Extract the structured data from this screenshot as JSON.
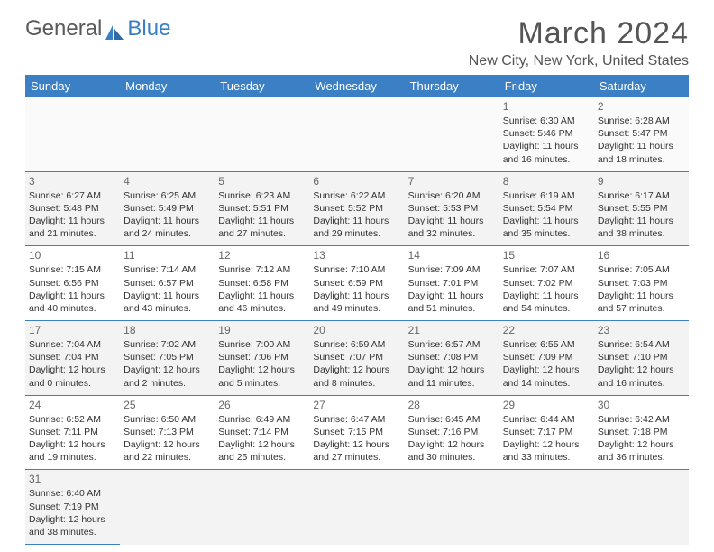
{
  "logo": {
    "part1": "General",
    "part2": "Blue"
  },
  "title": "March 2024",
  "location": "New City, New York, United States",
  "colors": {
    "header_bg": "#3b7fc4",
    "header_text": "#ffffff",
    "border": "#3b7fc4",
    "alt_row_bg": "#f3f3f3",
    "text": "#333333",
    "title_color": "#555555"
  },
  "typography": {
    "month_fontsize": 34,
    "location_fontsize": 16,
    "dayheader_fontsize": 13,
    "cell_fontsize": 10.5
  },
  "table": {
    "type": "calendar",
    "columns": [
      "Sunday",
      "Monday",
      "Tuesday",
      "Wednesday",
      "Thursday",
      "Friday",
      "Saturday"
    ],
    "weeks": [
      [
        null,
        null,
        null,
        null,
        null,
        {
          "n": "1",
          "sr": "Sunrise: 6:30 AM",
          "ss": "Sunset: 5:46 PM",
          "dl": "Daylight: 11 hours and 16 minutes."
        },
        {
          "n": "2",
          "sr": "Sunrise: 6:28 AM",
          "ss": "Sunset: 5:47 PM",
          "dl": "Daylight: 11 hours and 18 minutes."
        }
      ],
      [
        {
          "n": "3",
          "sr": "Sunrise: 6:27 AM",
          "ss": "Sunset: 5:48 PM",
          "dl": "Daylight: 11 hours and 21 minutes."
        },
        {
          "n": "4",
          "sr": "Sunrise: 6:25 AM",
          "ss": "Sunset: 5:49 PM",
          "dl": "Daylight: 11 hours and 24 minutes."
        },
        {
          "n": "5",
          "sr": "Sunrise: 6:23 AM",
          "ss": "Sunset: 5:51 PM",
          "dl": "Daylight: 11 hours and 27 minutes."
        },
        {
          "n": "6",
          "sr": "Sunrise: 6:22 AM",
          "ss": "Sunset: 5:52 PM",
          "dl": "Daylight: 11 hours and 29 minutes."
        },
        {
          "n": "7",
          "sr": "Sunrise: 6:20 AM",
          "ss": "Sunset: 5:53 PM",
          "dl": "Daylight: 11 hours and 32 minutes."
        },
        {
          "n": "8",
          "sr": "Sunrise: 6:19 AM",
          "ss": "Sunset: 5:54 PM",
          "dl": "Daylight: 11 hours and 35 minutes."
        },
        {
          "n": "9",
          "sr": "Sunrise: 6:17 AM",
          "ss": "Sunset: 5:55 PM",
          "dl": "Daylight: 11 hours and 38 minutes."
        }
      ],
      [
        {
          "n": "10",
          "sr": "Sunrise: 7:15 AM",
          "ss": "Sunset: 6:56 PM",
          "dl": "Daylight: 11 hours and 40 minutes."
        },
        {
          "n": "11",
          "sr": "Sunrise: 7:14 AM",
          "ss": "Sunset: 6:57 PM",
          "dl": "Daylight: 11 hours and 43 minutes."
        },
        {
          "n": "12",
          "sr": "Sunrise: 7:12 AM",
          "ss": "Sunset: 6:58 PM",
          "dl": "Daylight: 11 hours and 46 minutes."
        },
        {
          "n": "13",
          "sr": "Sunrise: 7:10 AM",
          "ss": "Sunset: 6:59 PM",
          "dl": "Daylight: 11 hours and 49 minutes."
        },
        {
          "n": "14",
          "sr": "Sunrise: 7:09 AM",
          "ss": "Sunset: 7:01 PM",
          "dl": "Daylight: 11 hours and 51 minutes."
        },
        {
          "n": "15",
          "sr": "Sunrise: 7:07 AM",
          "ss": "Sunset: 7:02 PM",
          "dl": "Daylight: 11 hours and 54 minutes."
        },
        {
          "n": "16",
          "sr": "Sunrise: 7:05 AM",
          "ss": "Sunset: 7:03 PM",
          "dl": "Daylight: 11 hours and 57 minutes."
        }
      ],
      [
        {
          "n": "17",
          "sr": "Sunrise: 7:04 AM",
          "ss": "Sunset: 7:04 PM",
          "dl": "Daylight: 12 hours and 0 minutes."
        },
        {
          "n": "18",
          "sr": "Sunrise: 7:02 AM",
          "ss": "Sunset: 7:05 PM",
          "dl": "Daylight: 12 hours and 2 minutes."
        },
        {
          "n": "19",
          "sr": "Sunrise: 7:00 AM",
          "ss": "Sunset: 7:06 PM",
          "dl": "Daylight: 12 hours and 5 minutes."
        },
        {
          "n": "20",
          "sr": "Sunrise: 6:59 AM",
          "ss": "Sunset: 7:07 PM",
          "dl": "Daylight: 12 hours and 8 minutes."
        },
        {
          "n": "21",
          "sr": "Sunrise: 6:57 AM",
          "ss": "Sunset: 7:08 PM",
          "dl": "Daylight: 12 hours and 11 minutes."
        },
        {
          "n": "22",
          "sr": "Sunrise: 6:55 AM",
          "ss": "Sunset: 7:09 PM",
          "dl": "Daylight: 12 hours and 14 minutes."
        },
        {
          "n": "23",
          "sr": "Sunrise: 6:54 AM",
          "ss": "Sunset: 7:10 PM",
          "dl": "Daylight: 12 hours and 16 minutes."
        }
      ],
      [
        {
          "n": "24",
          "sr": "Sunrise: 6:52 AM",
          "ss": "Sunset: 7:11 PM",
          "dl": "Daylight: 12 hours and 19 minutes."
        },
        {
          "n": "25",
          "sr": "Sunrise: 6:50 AM",
          "ss": "Sunset: 7:13 PM",
          "dl": "Daylight: 12 hours and 22 minutes."
        },
        {
          "n": "26",
          "sr": "Sunrise: 6:49 AM",
          "ss": "Sunset: 7:14 PM",
          "dl": "Daylight: 12 hours and 25 minutes."
        },
        {
          "n": "27",
          "sr": "Sunrise: 6:47 AM",
          "ss": "Sunset: 7:15 PM",
          "dl": "Daylight: 12 hours and 27 minutes."
        },
        {
          "n": "28",
          "sr": "Sunrise: 6:45 AM",
          "ss": "Sunset: 7:16 PM",
          "dl": "Daylight: 12 hours and 30 minutes."
        },
        {
          "n": "29",
          "sr": "Sunrise: 6:44 AM",
          "ss": "Sunset: 7:17 PM",
          "dl": "Daylight: 12 hours and 33 minutes."
        },
        {
          "n": "30",
          "sr": "Sunrise: 6:42 AM",
          "ss": "Sunset: 7:18 PM",
          "dl": "Daylight: 12 hours and 36 minutes."
        }
      ],
      [
        {
          "n": "31",
          "sr": "Sunrise: 6:40 AM",
          "ss": "Sunset: 7:19 PM",
          "dl": "Daylight: 12 hours and 38 minutes."
        },
        null,
        null,
        null,
        null,
        null,
        null
      ]
    ]
  }
}
